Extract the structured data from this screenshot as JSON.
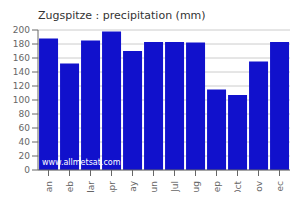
{
  "chart_data": {
    "type": "bar",
    "title": "Zugspitze : precipitation (mm)",
    "categories": [
      "Jan",
      "Feb",
      "Mar",
      "Apr",
      "May",
      "Jun",
      "Jul",
      "Aug",
      "Sep",
      "Oct",
      "Nov",
      "Dec"
    ],
    "values": [
      188,
      152,
      185,
      198,
      170,
      183,
      183,
      182,
      115,
      107,
      155,
      183
    ],
    "color": "#1111CC",
    "ylim": [
      0,
      200
    ],
    "yticks": [
      0,
      20,
      40,
      60,
      80,
      100,
      120,
      140,
      160,
      180,
      200
    ],
    "grid": true,
    "annotations": [
      "www.allmetsat.com"
    ]
  }
}
